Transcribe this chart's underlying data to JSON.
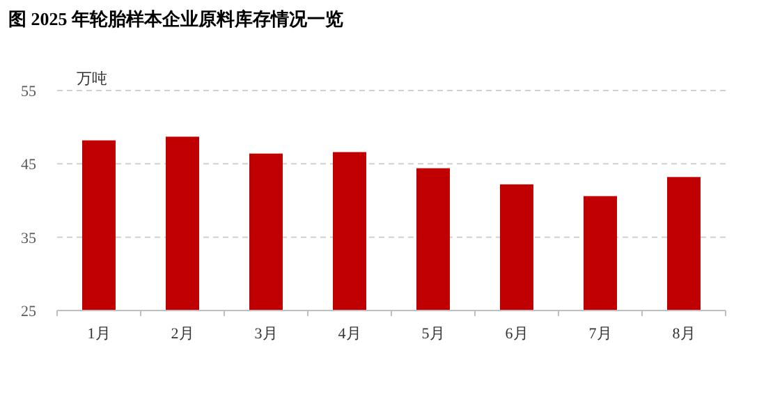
{
  "chart_data": {
    "type": "bar",
    "title": "图 2025 年轮胎样本企业原料库存情况一览",
    "ylabel": "万吨",
    "categories": [
      "1月",
      "2月",
      "3月",
      "4月",
      "5月",
      "6月",
      "7月",
      "8月"
    ],
    "values": [
      48.2,
      48.7,
      46.4,
      46.6,
      44.4,
      42.2,
      40.6,
      43.2
    ],
    "color": "#c00000",
    "ylim": [
      25,
      55
    ],
    "yticks": [
      25,
      35,
      45,
      55
    ],
    "grid": "y"
  }
}
